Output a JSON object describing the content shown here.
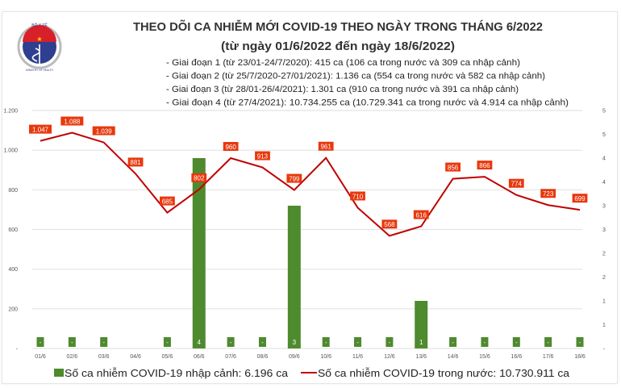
{
  "header": {
    "logo_text_top": "BỘ Y TẾ",
    "logo_text_bottom": "MINISTRY OF HEALTH",
    "title": "THEO DÕI CA NHIỄM MỚI COVID-19 THEO NGÀY TRONG THÁNG 6/2022",
    "subtitle": "(từ ngày 01/6/2022 đến ngày 18/6/2022)",
    "notes": [
      "- Giai đoạn 1 (từ 23/01-24/7/2020): 415 ca (106 ca trong nước và 309 ca nhập cảnh)",
      "- Giai đoạn 2 (từ 25/7/2020-27/01/2021): 1.136 ca (554 ca trong nước và 582 ca nhập cảnh)",
      "- Giai đoạn 3 (từ 28/01-26/4/2021): 1.301 ca (910 ca trong nước và 391 ca nhập cảnh)",
      "- Giai đoạn 4 (từ 27/4/2021): 10.734.255 ca (10.729.341 ca trong nước và 4.914 ca nhập cảnh)"
    ]
  },
  "chart_data": {
    "type": "bar+line",
    "categories": [
      "01/6",
      "02/6",
      "03/6",
      "04/6",
      "05/6",
      "06/6",
      "07/6",
      "08/6",
      "09/6",
      "10/6",
      "11/6",
      "12/6",
      "13/6",
      "14/6",
      "15/6",
      "16/6",
      "17/6",
      "18/6"
    ],
    "series": [
      {
        "name": "Số ca nhiễm COVID-19 nhập cảnh: 6.196 ca",
        "type": "bar",
        "axis": "right",
        "color": "#4e8a2e",
        "values": [
          0,
          0,
          0,
          null,
          0,
          4,
          0,
          0,
          3,
          0,
          0,
          0,
          1,
          0,
          0,
          0,
          0,
          0
        ],
        "labels": [
          "-",
          "-",
          "-",
          "",
          "-",
          "4",
          "-",
          "-",
          "3",
          "-",
          "-",
          "-",
          "1",
          "-",
          "-",
          "-",
          "-",
          "-"
        ]
      },
      {
        "name": "Số ca nhiễm COVID-19 trong nước: 10.730.911 ca",
        "type": "line",
        "axis": "left",
        "color": "#c00000",
        "label_color": "#e8380d",
        "values": [
          1047,
          1088,
          1039,
          881,
          685,
          802,
          960,
          913,
          799,
          961,
          710,
          568,
          616,
          856,
          866,
          774,
          723,
          699
        ],
        "labels": [
          "1.047",
          "1.088",
          "1.039",
          "881",
          "685",
          "802",
          "960",
          "913",
          "799",
          "961",
          "710",
          "568",
          "616",
          "856",
          "866",
          "774",
          "723",
          "699"
        ]
      }
    ],
    "left_axis": {
      "range": [
        0,
        1200
      ],
      "ticks": [
        "-",
        "200",
        "400",
        "600",
        "800",
        "1.000",
        "1.200"
      ]
    },
    "right_axis": {
      "range": [
        0,
        5
      ],
      "ticks": [
        "-",
        "1",
        "1",
        "2",
        "2",
        "3",
        "3",
        "4",
        "4",
        "5",
        "5"
      ]
    },
    "grid": true,
    "legend_placement": "bottom"
  }
}
